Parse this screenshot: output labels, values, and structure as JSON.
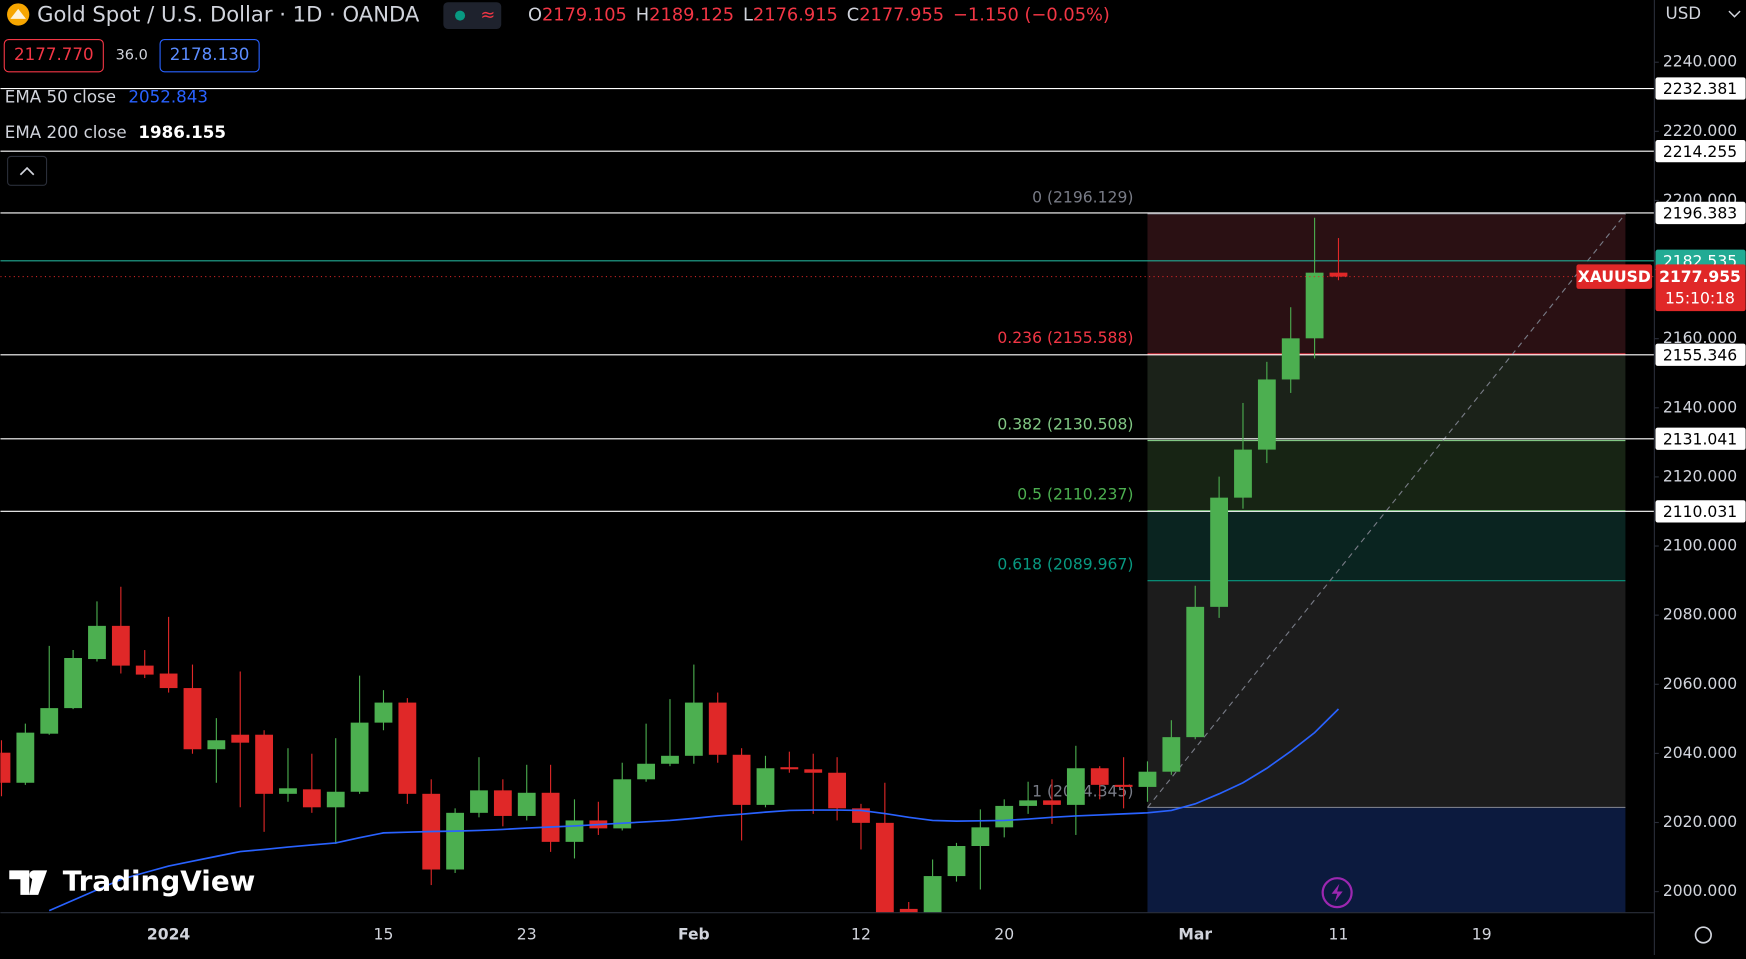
{
  "header": {
    "title": "Gold Spot / U.S. Dollar · 1D · OANDA",
    "ohlc_letters": [
      "O",
      "H",
      "L",
      "C"
    ],
    "change": "−1.150 (−0.05%)",
    "bid": "2177.770",
    "spread": "36.0",
    "ask": "2178.130",
    "currency": "USD",
    "logo": "TradingView"
  },
  "chart_data": {
    "type": "candlestick",
    "categories": [
      null,
      null,
      null,
      null,
      null,
      null,
      null,
      "2024",
      null,
      null,
      null,
      null,
      null,
      null,
      null,
      null,
      "15",
      null,
      null,
      null,
      null,
      null,
      "23",
      null,
      null,
      null,
      null,
      null,
      null,
      "Feb",
      null,
      null,
      null,
      null,
      null,
      null,
      "12",
      null,
      null,
      null,
      null,
      null,
      "20",
      null,
      null,
      null,
      null,
      null,
      null,
      null,
      "Mar",
      null,
      null,
      null,
      null,
      null,
      "11",
      null,
      null,
      null,
      null,
      null,
      "19"
    ],
    "series": [
      {
        "name": "XAUUSD",
        "type": "candlestick",
        "up_color": "#4caf50",
        "down_color": "#e02828",
        "open": [
          2040.2,
          2031.5,
          2045.7,
          2053.1,
          2067.3,
          2076.9,
          2065.4,
          2063.1,
          2058.9,
          2041.2,
          2045.4,
          2045.4,
          2028.3,
          2029.6,
          2024.4,
          2028.9,
          2048.9,
          2054.7,
          2028.3,
          2006.4,
          2022.8,
          2029.3,
          2021.9,
          2028.6,
          2014.4,
          2020.6,
          2018.3,
          2032.5,
          2037.0,
          2039.3,
          2054.7,
          2039.6,
          2025.1,
          2036.0,
          2035.4,
          2034.4,
          2024.1,
          2019.9,
          1995.0,
          1992.0,
          2004.5,
          2013.2,
          2018.6,
          2024.8,
          2026.4,
          2025.1,
          2035.7,
          2030.9,
          2030.3,
          2034.7,
          2044.7,
          2082.4,
          2114.0,
          2127.9,
          2148.2,
          2160.1,
          2179.105,
          null,
          null,
          null,
          null,
          null,
          null
        ],
        "high": [
          2043.8,
          2048.6,
          2071.1,
          2069.9,
          2084.0,
          2088.2,
          2069.9,
          2079.5,
          2065.7,
          2050.2,
          2063.7,
          2046.7,
          2041.5,
          2039.9,
          2044.4,
          2062.5,
          2058.3,
          2056.0,
          2032.5,
          2024.1,
          2038.9,
          2032.5,
          2036.7,
          2036.7,
          2026.7,
          2026.0,
          2037.3,
          2048.6,
          2055.7,
          2065.7,
          2057.6,
          2041.5,
          2039.3,
          2040.5,
          2039.9,
          2038.9,
          2025.4,
          2031.5,
          1997.0,
          2009.3,
          2014.1,
          2023.8,
          2026.7,
          2031.8,
          2032.5,
          2042.2,
          2036.3,
          2038.9,
          2037.7,
          2049.6,
          2088.5,
          2120.1,
          2141.4,
          2153.3,
          2169.1,
          2195.0,
          2189.125,
          null,
          null,
          null,
          null,
          null,
          null
        ],
        "low": [
          2027.6,
          2030.9,
          2045.4,
          2052.8,
          2066.6,
          2063.1,
          2061.8,
          2057.6,
          2039.9,
          2031.5,
          2024.4,
          2017.3,
          2026.0,
          2022.8,
          2013.8,
          2028.3,
          2046.7,
          2025.4,
          2001.9,
          2005.4,
          2021.5,
          2018.9,
          2020.6,
          2011.5,
          2009.6,
          2016.4,
          2017.7,
          2031.8,
          2036.3,
          2037.0,
          2037.3,
          2014.8,
          2024.4,
          2034.4,
          2022.5,
          2020.6,
          2012.2,
          1984.5,
          1984.0,
          1991.2,
          2002.9,
          2000.6,
          2015.7,
          2022.5,
          2019.6,
          2016.4,
          2026.7,
          2024.1,
          2026.0,
          2033.8,
          2044.1,
          2079.2,
          2110.8,
          2124.0,
          2144.3,
          2154.3,
          2176.915,
          null,
          null,
          null,
          null,
          null,
          null
        ],
        "close": [
          2031.5,
          2046.0,
          2053.1,
          2067.6,
          2076.9,
          2065.4,
          2062.8,
          2058.9,
          2041.2,
          2043.8,
          2043.1,
          2028.3,
          2029.9,
          2024.4,
          2028.9,
          2048.9,
          2054.7,
          2028.3,
          2006.4,
          2022.8,
          2029.3,
          2021.9,
          2028.6,
          2014.4,
          2020.6,
          2018.3,
          2032.5,
          2037.0,
          2039.3,
          2054.7,
          2039.6,
          2025.1,
          2035.7,
          2035.4,
          2034.4,
          2024.1,
          2019.9,
          1992.5,
          1991.0,
          2004.5,
          2013.2,
          2018.6,
          2024.8,
          2026.4,
          2025.1,
          2035.7,
          2030.9,
          2030.3,
          2034.7,
          2044.7,
          2082.4,
          2114.0,
          2127.9,
          2148.2,
          2160.1,
          2179.1,
          2177.955,
          null,
          null,
          null,
          null,
          null,
          null
        ]
      },
      {
        "name": "EMA 50 close",
        "type": "line",
        "color": "#2962ff",
        "values": [
          null,
          null,
          1994.5,
          1997.5,
          2000.5,
          2003.5,
          2005.5,
          2007.4,
          2008.8,
          2010.2,
          2011.6,
          2012.2,
          2012.9,
          2013.5,
          2014.1,
          2015.6,
          2017.0,
          2017.2,
          2017.4,
          2017.5,
          2017.7,
          2018.0,
          2018.4,
          2018.7,
          2019.0,
          2019.4,
          2019.8,
          2020.2,
          2020.6,
          2021.2,
          2021.9,
          2022.4,
          2023.0,
          2023.5,
          2023.6,
          2023.6,
          2023.5,
          2022.6,
          2021.5,
          2020.6,
          2020.4,
          2020.5,
          2020.6,
          2021.0,
          2021.5,
          2021.9,
          2022.2,
          2022.5,
          2022.8,
          2023.5,
          2025.4,
          2028.3,
          2031.5,
          2035.7,
          2040.6,
          2046.0,
          2052.843,
          null,
          null,
          null,
          null,
          null,
          null
        ]
      }
    ],
    "ema200": {
      "name": "EMA 200 close",
      "value": 1986.155
    },
    "countdown": "15:10:18",
    "ylim": [
      1993.9,
      2258.0
    ],
    "yticks": [
      {
        "value": 2000,
        "label": "2000.000"
      },
      {
        "value": 2020,
        "label": "2020.000"
      },
      {
        "value": 2040,
        "label": "2040.000"
      },
      {
        "value": 2060,
        "label": "2060.000"
      },
      {
        "value": 2080,
        "label": "2080.000"
      },
      {
        "value": 2100,
        "label": "2100.000"
      },
      {
        "value": 2120,
        "label": "2120.000"
      },
      {
        "value": 2140,
        "label": "2140.000"
      },
      {
        "value": 2160,
        "label": "2160.000"
      },
      {
        "value": 2180,
        "label": "2180.000"
      },
      {
        "value": 2200,
        "label": "2200.000"
      },
      {
        "value": 2220,
        "label": "2220.000"
      },
      {
        "value": 2240,
        "label": "2240.000"
      }
    ],
    "grid": false,
    "price_lines": [
      {
        "value": 2232.381,
        "color": "#ffffff"
      },
      {
        "value": 2214.255,
        "color": "#ffffff"
      },
      {
        "value": 2196.383,
        "color": "#ffffff"
      },
      {
        "value": 2182.535,
        "color": "#22ab94"
      },
      {
        "value": 2155.346,
        "color": "#ffffff"
      },
      {
        "value": 2131.041,
        "color": "#ffffff"
      },
      {
        "value": 2110.031,
        "color": "#ffffff"
      }
    ],
    "fib": {
      "levels": [
        {
          "label": "0 (2196.129)",
          "price": 2196.129,
          "color": "#787b86",
          "fill": "#2a1013"
        },
        {
          "label": "0.236 (2155.588)",
          "price": 2155.588,
          "color": "#f23645",
          "fill": "#1b2219"
        },
        {
          "label": "0.382 (2130.508)",
          "price": 2130.508,
          "color": "#81c784",
          "fill": "#172414"
        },
        {
          "label": "0.5 (2110.237)",
          "price": 2110.237,
          "color": "#4caf50",
          "fill": "#0a2420"
        },
        {
          "label": "0.618 (2089.967)",
          "price": 2089.967,
          "color": "#089981",
          "fill": "#1c1c1c"
        },
        {
          "label": "1 (2024.345)",
          "price": 2024.345,
          "color": "#787b86",
          "fill": "#0c1a3e"
        }
      ]
    }
  }
}
